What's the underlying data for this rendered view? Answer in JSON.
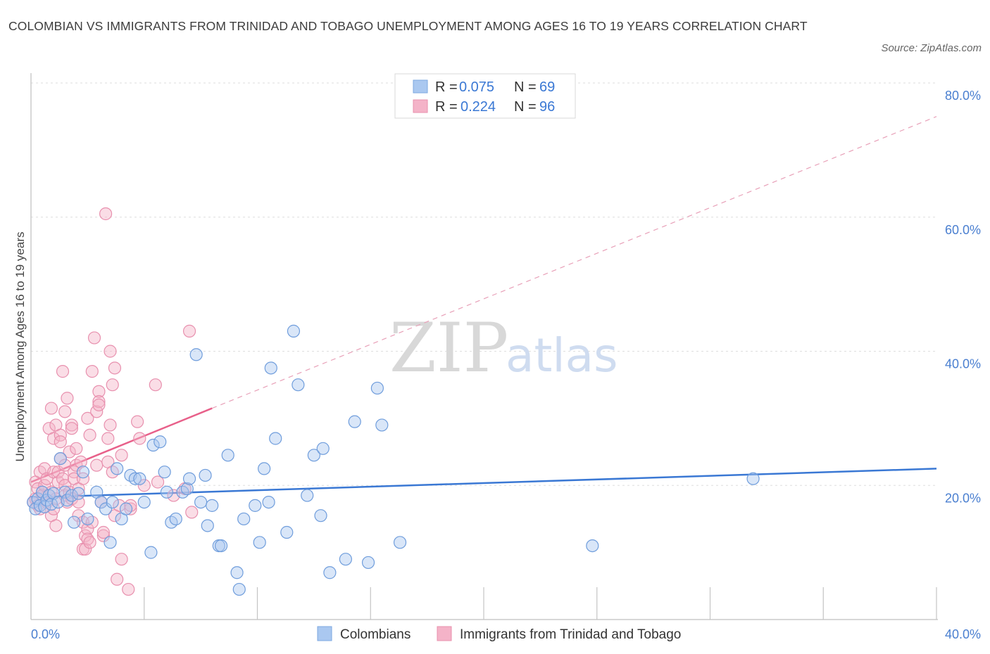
{
  "title": "COLOMBIAN VS IMMIGRANTS FROM TRINIDAD AND TOBAGO UNEMPLOYMENT AMONG AGES 16 TO 19 YEARS CORRELATION CHART",
  "source": "Source: ZipAtlas.com",
  "watermark": {
    "zip": "ZIP",
    "atlas": "atlas"
  },
  "colors": {
    "blue": "#3a78d4",
    "blue_fill": "#aac8f0",
    "pink": "#e8608a",
    "pink_fill": "#f4b3c8"
  },
  "legend": {
    "r_label": "R =",
    "n_label": "N =",
    "series": [
      {
        "r": "0.075",
        "n": "69"
      },
      {
        "r": "0.224",
        "n": "96"
      }
    ]
  },
  "bottom_legend": [
    "Colombians",
    "Immigrants from Trinidad and Tobago"
  ],
  "chart_data": {
    "type": "scatter",
    "title": "COLOMBIAN VS IMMIGRANTS FROM TRINIDAD AND TOBAGO UNEMPLOYMENT AMONG AGES 16 TO 19 YEARS CORRELATION CHART",
    "xlabel": "",
    "ylabel": "Unemployment Among Ages 16 to 19 years",
    "xlim": [
      0,
      40
    ],
    "ylim": [
      0,
      80
    ],
    "x_tick_labels": [
      "0.0%",
      "40.0%"
    ],
    "y_ticks": [
      20,
      40,
      60,
      80
    ],
    "y_tick_labels": [
      "20.0%",
      "40.0%",
      "60.0%",
      "80.0%"
    ],
    "grid": true,
    "legend_position": "top-center",
    "series": [
      {
        "name": "Colombians",
        "color": "#3a78d4",
        "trend": {
          "x0": 0,
          "y0": 18.2,
          "x1": 40,
          "y1": 22.5,
          "style": "solid"
        },
        "points": [
          [
            0.1,
            17.5
          ],
          [
            0.2,
            16.5
          ],
          [
            0.3,
            18
          ],
          [
            0.4,
            17
          ],
          [
            0.5,
            19
          ],
          [
            0.6,
            16.8
          ],
          [
            0.7,
            17.8
          ],
          [
            0.8,
            18.5
          ],
          [
            0.9,
            17.2
          ],
          [
            1.0,
            18.8
          ],
          [
            1.2,
            17.5
          ],
          [
            1.3,
            24
          ],
          [
            1.5,
            19
          ],
          [
            1.6,
            17.8
          ],
          [
            1.8,
            18.5
          ],
          [
            1.9,
            14.5
          ],
          [
            2.1,
            18.8
          ],
          [
            2.3,
            22
          ],
          [
            2.5,
            15
          ],
          [
            2.9,
            19
          ],
          [
            3.1,
            17.5
          ],
          [
            3.3,
            16.5
          ],
          [
            3.5,
            11.5
          ],
          [
            3.6,
            17.5
          ],
          [
            3.8,
            22.5
          ],
          [
            4.0,
            15
          ],
          [
            4.2,
            16.5
          ],
          [
            4.4,
            21.5
          ],
          [
            4.6,
            21
          ],
          [
            4.8,
            21
          ],
          [
            5.0,
            17.5
          ],
          [
            5.3,
            10
          ],
          [
            5.4,
            26
          ],
          [
            5.7,
            26.5
          ],
          [
            5.9,
            22
          ],
          [
            6.0,
            19
          ],
          [
            6.2,
            14.5
          ],
          [
            6.4,
            15
          ],
          [
            6.7,
            19
          ],
          [
            6.9,
            19.5
          ],
          [
            7.0,
            21
          ],
          [
            7.3,
            39.5
          ],
          [
            7.5,
            17.5
          ],
          [
            7.7,
            21.5
          ],
          [
            7.8,
            14
          ],
          [
            8.0,
            17
          ],
          [
            8.3,
            11
          ],
          [
            8.4,
            11
          ],
          [
            8.7,
            24.5
          ],
          [
            9.1,
            7
          ],
          [
            9.2,
            4.5
          ],
          [
            9.4,
            15
          ],
          [
            9.9,
            17
          ],
          [
            10.1,
            11.5
          ],
          [
            10.3,
            22.5
          ],
          [
            10.5,
            17.5
          ],
          [
            10.6,
            37.5
          ],
          [
            10.8,
            27
          ],
          [
            11.3,
            13
          ],
          [
            11.6,
            43
          ],
          [
            11.8,
            35
          ],
          [
            12.2,
            18.5
          ],
          [
            12.5,
            24.5
          ],
          [
            12.8,
            15.5
          ],
          [
            12.9,
            25.5
          ],
          [
            13.2,
            7
          ],
          [
            13.9,
            9
          ],
          [
            14.3,
            29.5
          ],
          [
            14.9,
            8.5
          ],
          [
            15.3,
            34.5
          ],
          [
            15.5,
            29
          ],
          [
            16.3,
            11.5
          ],
          [
            24.8,
            11
          ],
          [
            31.9,
            21
          ]
        ]
      },
      {
        "name": "Immigrants from Trinidad and Tobago",
        "color": "#e8608a",
        "trend": {
          "x0": 0,
          "y0": 20.5,
          "x1": 8,
          "y1": 31.5,
          "style": "solid",
          "extend_to_x": 40,
          "extend_to_y": 75,
          "extend_style": "dashed"
        },
        "points": [
          [
            0.1,
            17.5
          ],
          [
            0.2,
            18
          ],
          [
            0.2,
            20.5
          ],
          [
            0.3,
            17
          ],
          [
            0.3,
            19.5
          ],
          [
            0.4,
            22
          ],
          [
            0.4,
            16.5
          ],
          [
            0.5,
            19
          ],
          [
            0.5,
            18.5
          ],
          [
            0.6,
            22.5
          ],
          [
            0.6,
            20
          ],
          [
            0.7,
            21
          ],
          [
            0.7,
            17.5
          ],
          [
            0.8,
            28.5
          ],
          [
            0.8,
            18.5
          ],
          [
            0.9,
            19
          ],
          [
            0.9,
            15.5
          ],
          [
            0.9,
            31.5
          ],
          [
            1.0,
            27
          ],
          [
            1.0,
            22
          ],
          [
            1.0,
            16.5
          ],
          [
            1.1,
            18
          ],
          [
            1.1,
            14
          ],
          [
            1.1,
            29
          ],
          [
            1.2,
            20.5
          ],
          [
            1.2,
            22
          ],
          [
            1.3,
            24
          ],
          [
            1.3,
            27.5
          ],
          [
            1.3,
            26.5
          ],
          [
            1.4,
            37
          ],
          [
            1.4,
            21
          ],
          [
            1.5,
            23
          ],
          [
            1.5,
            20
          ],
          [
            1.5,
            18.5
          ],
          [
            1.5,
            31
          ],
          [
            1.6,
            33
          ],
          [
            1.6,
            17.5
          ],
          [
            1.7,
            19
          ],
          [
            1.7,
            25
          ],
          [
            1.8,
            29
          ],
          [
            1.8,
            28.5
          ],
          [
            1.8,
            18
          ],
          [
            1.9,
            22
          ],
          [
            1.9,
            21
          ],
          [
            2.0,
            25.5
          ],
          [
            2.0,
            23
          ],
          [
            2.1,
            17.5
          ],
          [
            2.1,
            15.5
          ],
          [
            2.1,
            19.5
          ],
          [
            2.2,
            23.5
          ],
          [
            2.3,
            21
          ],
          [
            2.3,
            14.5
          ],
          [
            2.3,
            10.5
          ],
          [
            2.4,
            10.5
          ],
          [
            2.4,
            12.5
          ],
          [
            2.5,
            13.5
          ],
          [
            2.5,
            12
          ],
          [
            2.5,
            30
          ],
          [
            2.6,
            27.5
          ],
          [
            2.6,
            11.5
          ],
          [
            2.7,
            14.5
          ],
          [
            2.7,
            37
          ],
          [
            2.8,
            42
          ],
          [
            2.9,
            23
          ],
          [
            2.9,
            31
          ],
          [
            3.0,
            34
          ],
          [
            3.0,
            32.5
          ],
          [
            3.0,
            32
          ],
          [
            3.1,
            17.5
          ],
          [
            3.2,
            12.5
          ],
          [
            3.2,
            13
          ],
          [
            3.3,
            60.5
          ],
          [
            3.4,
            27
          ],
          [
            3.4,
            23.5
          ],
          [
            3.5,
            40
          ],
          [
            3.5,
            29
          ],
          [
            3.6,
            22
          ],
          [
            3.6,
            35
          ],
          [
            3.7,
            37.5
          ],
          [
            3.7,
            15.5
          ],
          [
            3.8,
            6
          ],
          [
            3.9,
            17
          ],
          [
            4.0,
            9
          ],
          [
            4.0,
            24.5
          ],
          [
            4.3,
            4.5
          ],
          [
            4.4,
            16.5
          ],
          [
            4.4,
            17
          ],
          [
            4.7,
            29.5
          ],
          [
            4.8,
            27
          ],
          [
            5.0,
            20
          ],
          [
            5.5,
            35
          ],
          [
            5.6,
            20.5
          ],
          [
            6.3,
            18.5
          ],
          [
            6.8,
            19.5
          ],
          [
            7.0,
            43
          ],
          [
            7.1,
            16
          ]
        ]
      }
    ]
  }
}
